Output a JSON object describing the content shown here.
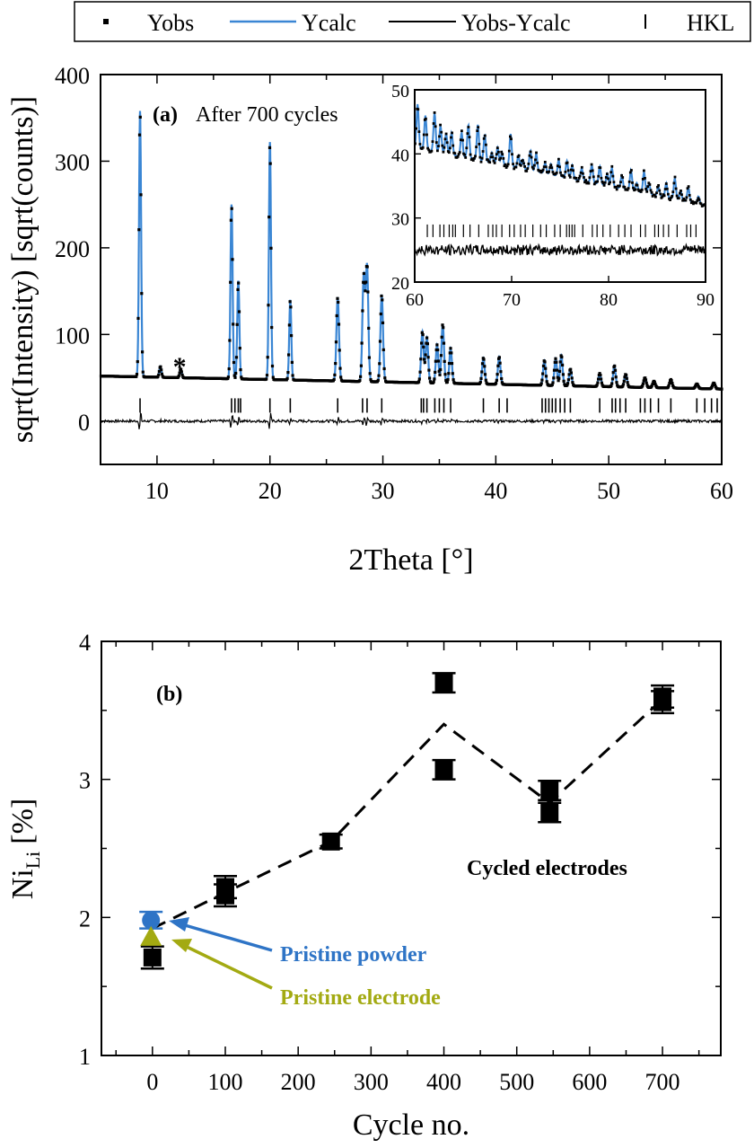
{
  "chart_data": [
    {
      "type": "line",
      "panel": "(a)",
      "title": "After 700 cycles",
      "xlabel": "2Theta [°]",
      "ylabel": "sqrt(Intensity) [sqrt(counts)]",
      "xlim": [
        5,
        60
      ],
      "ylim": [
        -50,
        400
      ],
      "xticks": [
        10,
        20,
        30,
        40,
        50,
        60
      ],
      "yticks": [
        0,
        100,
        200,
        300,
        400
      ],
      "legend": {
        "placement": "top",
        "entries": [
          {
            "label": "Yobs",
            "marker": "square",
            "color": "#000000"
          },
          {
            "label": "Ycalc",
            "marker": "line",
            "color": "#3a86d4"
          },
          {
            "label": "Yobs-Ycalc",
            "marker": "line",
            "color": "#000000"
          },
          {
            "label": "HKL",
            "marker": "tick",
            "color": "#000000"
          }
        ]
      },
      "annotation": "*",
      "annotation_x": 12.0,
      "background": 52,
      "background_end": 37,
      "peaks": [
        {
          "x": 8.5,
          "y": 358
        },
        {
          "x": 10.3,
          "y": 63
        },
        {
          "x": 12.1,
          "y": 60
        },
        {
          "x": 16.6,
          "y": 250
        },
        {
          "x": 17.2,
          "y": 162
        },
        {
          "x": 20.0,
          "y": 322
        },
        {
          "x": 21.8,
          "y": 140
        },
        {
          "x": 26.0,
          "y": 143
        },
        {
          "x": 28.3,
          "y": 166
        },
        {
          "x": 28.6,
          "y": 178
        },
        {
          "x": 29.9,
          "y": 146
        },
        {
          "x": 33.5,
          "y": 103
        },
        {
          "x": 33.9,
          "y": 96
        },
        {
          "x": 34.8,
          "y": 88
        },
        {
          "x": 35.3,
          "y": 112
        },
        {
          "x": 36.0,
          "y": 84
        },
        {
          "x": 38.9,
          "y": 73
        },
        {
          "x": 40.3,
          "y": 74
        },
        {
          "x": 44.3,
          "y": 70
        },
        {
          "x": 45.3,
          "y": 72
        },
        {
          "x": 45.8,
          "y": 76
        },
        {
          "x": 46.6,
          "y": 60
        },
        {
          "x": 49.2,
          "y": 55
        },
        {
          "x": 50.5,
          "y": 64
        },
        {
          "x": 51.5,
          "y": 54
        },
        {
          "x": 53.2,
          "y": 50
        },
        {
          "x": 54.0,
          "y": 46
        },
        {
          "x": 55.5,
          "y": 48
        },
        {
          "x": 57.8,
          "y": 43
        },
        {
          "x": 59.3,
          "y": 44
        }
      ],
      "hkl_y": 18,
      "diff_y": 0,
      "hkl": [
        8.5,
        16.6,
        16.9,
        17.2,
        17.4,
        20.0,
        21.8,
        26.0,
        28.2,
        28.6,
        29.9,
        33.4,
        33.6,
        33.9,
        34.6,
        35.0,
        35.4,
        36.0,
        38.9,
        40.3,
        41.0,
        44.1,
        44.4,
        44.7,
        45.0,
        45.3,
        45.7,
        46.1,
        46.6,
        49.2,
        50.3,
        50.6,
        51.0,
        51.5,
        52.8,
        53.2,
        53.7,
        54.4,
        55.5,
        57.8,
        58.5,
        59.1,
        59.6
      ],
      "inset": {
        "xlim": [
          60,
          90
        ],
        "ylim": [
          20,
          50
        ],
        "xticks": [
          60,
          70,
          80,
          90
        ],
        "yticks": [
          20,
          30,
          40,
          50
        ],
        "obs_start": 41,
        "obs_end": 32,
        "hkl_y": 28,
        "diff_y": 25
      }
    },
    {
      "type": "scatter",
      "panel": "(b)",
      "xlabel": "Cycle no.",
      "ylabel": "Ni",
      "ylabel_sub": "Li",
      "ylabel_unit": "[%]",
      "xlim": [
        -70,
        780
      ],
      "ylim": [
        1,
        4
      ],
      "xticks": [
        0,
        100,
        200,
        300,
        400,
        500,
        600,
        700
      ],
      "yticks": [
        1,
        2,
        3,
        4
      ],
      "series": [
        {
          "name": "Cycled electrodes",
          "marker": "square",
          "color": "#000000",
          "x": [
            0,
            100,
            100,
            245,
            400,
            400,
            545,
            545,
            700,
            700
          ],
          "y": [
            1.71,
            2.22,
            2.16,
            2.55,
            3.7,
            3.07,
            2.92,
            2.76,
            3.6,
            3.56
          ],
          "err": [
            0.08,
            0.08,
            0.08,
            0.05,
            0.07,
            0.07,
            0.07,
            0.07,
            0.08,
            0.08
          ]
        },
        {
          "name": "Pristine powder",
          "marker": "circle",
          "color": "#2e74c6",
          "x": [
            -2
          ],
          "y": [
            1.98
          ],
          "err": [
            0.06
          ]
        },
        {
          "name": "Pristine electrode",
          "marker": "triangle",
          "color": "#a3aa12",
          "x": [
            -2
          ],
          "y": [
            1.86
          ],
          "err": [
            0
          ]
        }
      ],
      "trend": {
        "x": [
          0,
          100,
          245,
          400,
          545,
          700
        ],
        "y": [
          1.92,
          2.18,
          2.55,
          3.4,
          2.83,
          3.58
        ]
      },
      "labels": [
        {
          "text": "(b)",
          "color": "#000000"
        },
        {
          "text": "Cycled electrodes",
          "color": "#000000"
        },
        {
          "text": "Pristine powder",
          "color": "#2e74c6"
        },
        {
          "text": "Pristine electrode",
          "color": "#a3aa12"
        }
      ]
    }
  ]
}
